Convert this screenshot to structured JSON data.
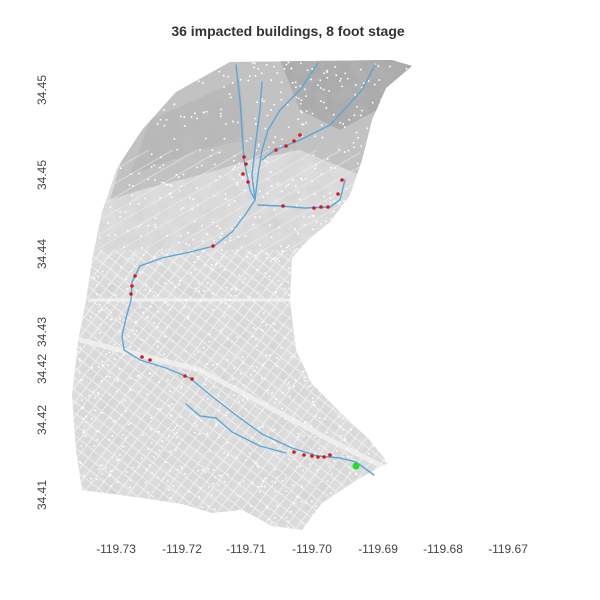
{
  "map": {
    "title": "36 impacted buildings, 8 foot stage",
    "impacted_count": 36,
    "stage_feet": 8,
    "x_ticks": [
      "-119.73",
      "-119.72",
      "-119.71",
      "-119.70",
      "-119.69",
      "-119.68",
      "-119.67"
    ],
    "y_ticks": [
      "34.41",
      "34.42",
      "34.42",
      "34.43",
      "34.44",
      "34.45",
      "34.45"
    ],
    "colors": {
      "terrain_light": "#dcdcdc",
      "terrain_mid": "#c4c4c4",
      "terrain_dark": "#a8a8a8",
      "street_grid": "#ffffff",
      "buildings": "#ffffff",
      "stream": "#5aa7d6",
      "impacted_building": "#d7191c",
      "gauge_point": "#22dd22"
    },
    "layers": [
      {
        "name": "hillshade terrain",
        "icon": "hillshade-icon"
      },
      {
        "name": "buildings",
        "icon": "building-dot-icon"
      },
      {
        "name": "creek network",
        "icon": "stream-line-icon"
      },
      {
        "name": "impacted buildings",
        "icon": "red-dot-icon"
      },
      {
        "name": "stream gauge",
        "icon": "green-dot-icon"
      }
    ]
  }
}
